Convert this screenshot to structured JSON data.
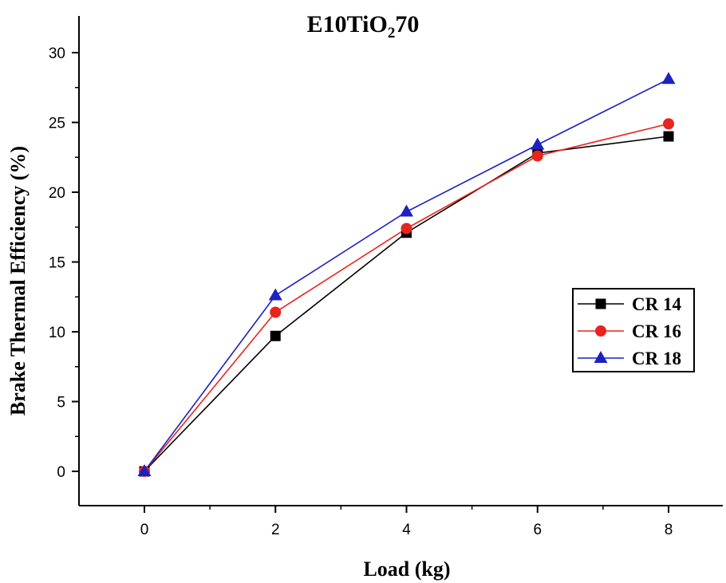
{
  "chart_data": {
    "type": "line",
    "title": "E10TiO",
    "title_subscript": "2",
    "title_suffix": "70",
    "xlabel": "Load (kg)",
    "ylabel": "Brake Thermal Efficiency (%)",
    "x": [
      0,
      2,
      4,
      6,
      8
    ],
    "xlim": [
      -1,
      9
    ],
    "ylim": [
      -2.5,
      32.5
    ],
    "xticks": [
      "0",
      "2",
      "4",
      "6",
      "8"
    ],
    "yticks": [
      "0",
      "5",
      "10",
      "15",
      "20",
      "25",
      "30"
    ],
    "grid": false,
    "legend_position": "right",
    "series": [
      {
        "name": "CR 14",
        "values": [
          0,
          9.7,
          17.1,
          22.8,
          24.0
        ],
        "color": "#000000",
        "marker": "square"
      },
      {
        "name": "CR 16",
        "values": [
          0,
          11.4,
          17.4,
          22.6,
          24.9
        ],
        "color": "#e8241c",
        "marker": "circle"
      },
      {
        "name": "CR 18",
        "values": [
          0,
          12.6,
          18.6,
          23.4,
          28.1
        ],
        "color": "#1c22c0",
        "marker": "triangle"
      }
    ]
  }
}
